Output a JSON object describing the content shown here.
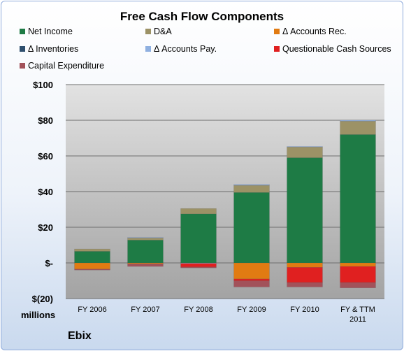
{
  "chart_data": {
    "type": "bar",
    "stacked": true,
    "title": "Free Cash Flow Components",
    "units_label": "millions",
    "company": "Ebix",
    "categories": [
      "FY 2006",
      "FY 2007",
      "FY 2008",
      "FY 2009",
      "FY 2010",
      "FY & TTM\n2011"
    ],
    "ylim": [
      -20,
      100
    ],
    "yticks": [
      -20,
      0,
      20,
      40,
      60,
      80,
      100
    ],
    "ytick_labels": [
      "$(20)",
      "$-",
      "$20",
      "$40",
      "$60",
      "$80",
      "$100"
    ],
    "grid": true,
    "legend_position": "top",
    "series": [
      {
        "name": "Net Income",
        "color": "#1e7b45",
        "values": [
          6.5,
          12.8,
          27.5,
          39.5,
          59,
          72
        ]
      },
      {
        "name": "D&A",
        "color": "#9c9266",
        "values": [
          1.3,
          1.2,
          3,
          4,
          6,
          7.5
        ]
      },
      {
        "name": "Δ Accounts Rec.",
        "color": "#e17b12",
        "values": [
          -3.5,
          -0.5,
          0,
          -9,
          -2.5,
          -2
        ]
      },
      {
        "name": "Δ Inventories",
        "color": "#2e4f6e",
        "values": [
          0,
          0,
          0,
          0,
          0,
          0
        ]
      },
      {
        "name": "Δ Accounts Pay.",
        "color": "#8fb0e0",
        "values": [
          0,
          0.3,
          -0.3,
          0.5,
          0.3,
          0.5
        ]
      },
      {
        "name": "Questionable Cash Sources",
        "color": "#e02020",
        "values": [
          0,
          0,
          -2,
          -1,
          -8.5,
          -9
        ]
      },
      {
        "name": "Capital Expenditure",
        "color": "#a2525a",
        "values": [
          -0.5,
          -1.5,
          -0.5,
          -3.5,
          -2.5,
          -3
        ]
      }
    ]
  }
}
